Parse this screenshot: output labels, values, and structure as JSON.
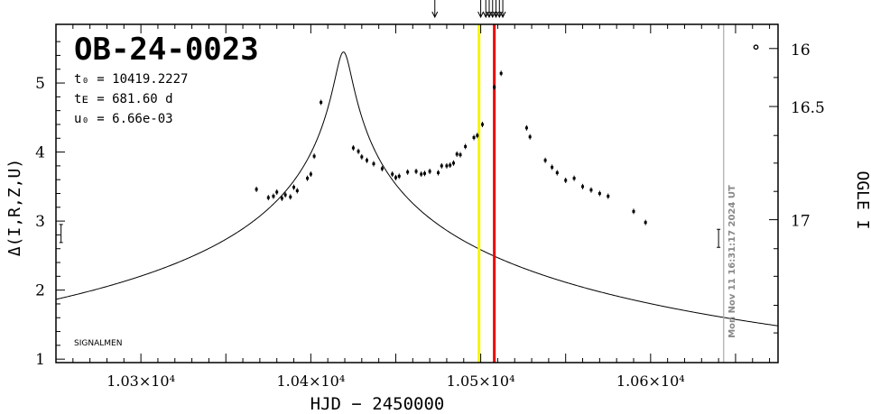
{
  "chart_data": {
    "type": "scatter",
    "title": "OB-24-0023",
    "params": {
      "t0": "t₀ = 10419.2227",
      "tE": "tᴇ = 681.60 d",
      "u0": "u₀ = 6.66e-03"
    },
    "xlabel": "HJD − 2450000",
    "ylabel_left": "Δ(I,R,Z,U)",
    "ylabel_right": "OGLE I",
    "footer_label": "SIGNALMEN",
    "timestamp": "Mon Nov 11 16:31:17 2024 UT",
    "xlim": [
      10250,
      10675
    ],
    "ylim": [
      0.95,
      5.85
    ],
    "x_ticks": [
      {
        "value": 10300,
        "label": "1.03×10⁴"
      },
      {
        "value": 10400,
        "label": "1.04×10⁴"
      },
      {
        "value": 10500,
        "label": "1.05×10⁴"
      },
      {
        "value": 10600,
        "label": "1.06×10⁴"
      }
    ],
    "y_ticks": [
      1,
      2,
      3,
      4,
      5
    ],
    "right_ticks": [
      {
        "delta": 5.5,
        "label": "16"
      },
      {
        "delta": 4.66,
        "label": "16.5"
      },
      {
        "delta": 3.02,
        "label": "17"
      }
    ],
    "vlines": [
      {
        "x": 10499,
        "color": "#f5f500"
      },
      {
        "x": 10508,
        "color": "#ee0000"
      },
      {
        "x": 10643,
        "color": "#aaaaaa"
      }
    ],
    "top_arrows_x": [
      10473,
      10500,
      10503,
      10505,
      10507,
      10509,
      10511,
      10513
    ],
    "model": {
      "t0": 10419.2227,
      "tE": 681.6,
      "u0": 0.00666,
      "peak_delta": 5.45,
      "model_offset": 0.455
    },
    "points": [
      [
        10368,
        3.46
      ],
      [
        10375,
        3.34
      ],
      [
        10378,
        3.36
      ],
      [
        10380,
        3.42
      ],
      [
        10383,
        3.33
      ],
      [
        10385,
        3.38
      ],
      [
        10388,
        3.35
      ],
      [
        10390,
        3.49
      ],
      [
        10392,
        3.44
      ],
      [
        10398,
        3.62
      ],
      [
        10400,
        3.68
      ],
      [
        10402,
        3.94
      ],
      [
        10406,
        4.72
      ],
      [
        10425,
        4.06
      ],
      [
        10428,
        4.01
      ],
      [
        10430,
        3.93
      ],
      [
        10433,
        3.88
      ],
      [
        10437,
        3.83
      ],
      [
        10442,
        3.76
      ],
      [
        10448,
        3.68
      ],
      [
        10450,
        3.63
      ],
      [
        10452,
        3.65
      ],
      [
        10457,
        3.71
      ],
      [
        10462,
        3.72
      ],
      [
        10465,
        3.68
      ],
      [
        10467,
        3.69
      ],
      [
        10470,
        3.72
      ],
      [
        10475,
        3.7
      ],
      [
        10477,
        3.8
      ],
      [
        10480,
        3.8
      ],
      [
        10482,
        3.81
      ],
      [
        10484,
        3.84
      ],
      [
        10486,
        3.97
      ],
      [
        10488,
        3.96
      ],
      [
        10491,
        4.08
      ],
      [
        10496,
        4.21
      ],
      [
        10498,
        4.24
      ],
      [
        10501,
        4.4
      ],
      [
        10508,
        4.94
      ],
      [
        10512,
        5.14
      ],
      [
        10527,
        4.35
      ],
      [
        10529,
        4.22
      ],
      [
        10538,
        3.88
      ],
      [
        10542,
        3.78
      ],
      [
        10545,
        3.7
      ],
      [
        10550,
        3.59
      ],
      [
        10555,
        3.62
      ],
      [
        10560,
        3.5
      ],
      [
        10565,
        3.45
      ],
      [
        10570,
        3.4
      ],
      [
        10575,
        3.36
      ],
      [
        10590,
        3.14
      ],
      [
        10597,
        2.98
      ],
      [
        10640,
        2.75
      ],
      [
        10662,
        5.52
      ],
      [
        10253,
        2.82
      ]
    ]
  }
}
